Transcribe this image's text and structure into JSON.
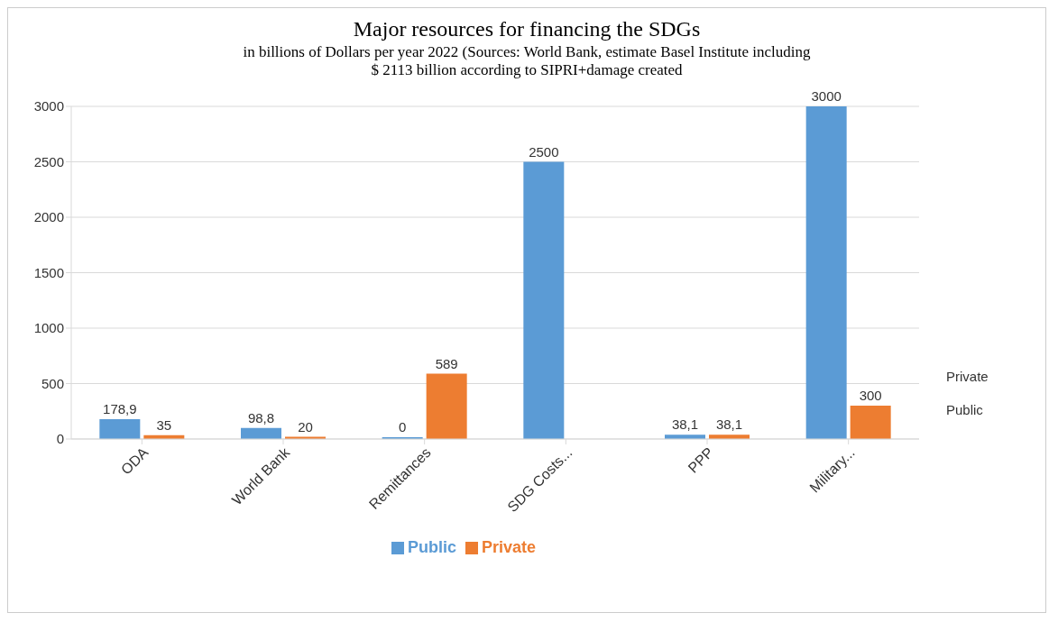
{
  "chart_data": {
    "type": "bar",
    "title": "Major resources for financing the SDGs",
    "subtitle": "in billions of Dollars per year 2022 (Sources: World Bank, estimate Basel Institute including $ 2113 billion according to SIPRI+damage created",
    "categories": [
      "ODA",
      "World Bank",
      "Remittances",
      "SDG Costs...",
      "PPP",
      "Military..."
    ],
    "series": [
      {
        "name": "Public",
        "color": "#5b9bd5",
        "values": [
          178.9,
          98.8,
          0,
          2500,
          38.1,
          3000
        ],
        "value_labels": [
          "178,9",
          "98,8",
          "0",
          "2500",
          "38,1",
          "3000"
        ]
      },
      {
        "name": "Private",
        "color": "#ed7d31",
        "values": [
          35,
          20,
          589,
          null,
          38.1,
          300
        ],
        "value_labels": [
          "35",
          "20",
          "589",
          null,
          "38,1",
          "300"
        ]
      }
    ],
    "ylim": [
      0,
      3000
    ],
    "yticks": [
      0,
      500,
      1000,
      1500,
      2000,
      2500,
      3000
    ],
    "grid": "y",
    "legend": "bottom",
    "annotations": [
      "Private",
      "Public"
    ]
  }
}
